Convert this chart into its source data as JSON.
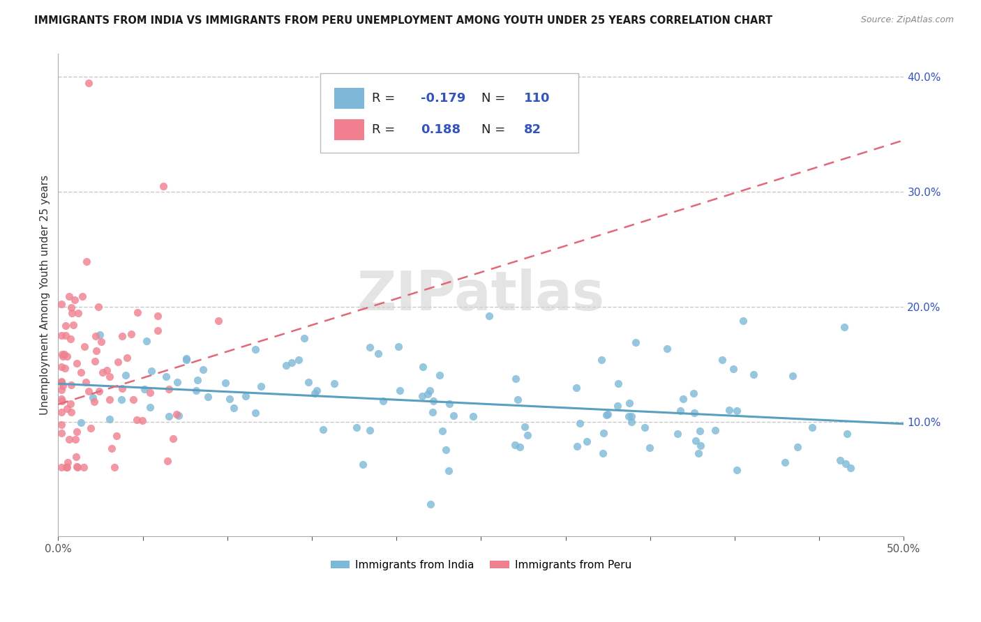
{
  "title": "IMMIGRANTS FROM INDIA VS IMMIGRANTS FROM PERU UNEMPLOYMENT AMONG YOUTH UNDER 25 YEARS CORRELATION CHART",
  "source": "Source: ZipAtlas.com",
  "ylabel": "Unemployment Among Youth under 25 years",
  "xlim": [
    0.0,
    0.5
  ],
  "ylim": [
    0.0,
    0.42
  ],
  "x_ticks": [
    0.0,
    0.05,
    0.1,
    0.15,
    0.2,
    0.25,
    0.3,
    0.35,
    0.4,
    0.45,
    0.5
  ],
  "x_tick_labels_show": [
    "0.0%",
    "",
    "",
    "",
    "",
    "",
    "",
    "",
    "",
    "",
    "50.0%"
  ],
  "y_ticks": [
    0.1,
    0.2,
    0.3,
    0.4
  ],
  "y_tick_labels": [
    "10.0%",
    "20.0%",
    "30.0%",
    "40.0%"
  ],
  "india_color": "#7db8d8",
  "peru_color": "#f08090",
  "india_line_color": "#5a9fc0",
  "peru_line_color": "#e06878",
  "india_R": -0.179,
  "india_N": 110,
  "peru_R": 0.188,
  "peru_N": 82,
  "legend_color": "#3355bb",
  "background_color": "#ffffff",
  "grid_color": "#c8c8c8",
  "watermark": "ZIPatlas",
  "india_trend_x": [
    0.0,
    0.5
  ],
  "india_trend_y": [
    0.133,
    0.098
  ],
  "peru_trend_x": [
    0.0,
    0.5
  ],
  "peru_trend_y": [
    0.115,
    0.345
  ]
}
